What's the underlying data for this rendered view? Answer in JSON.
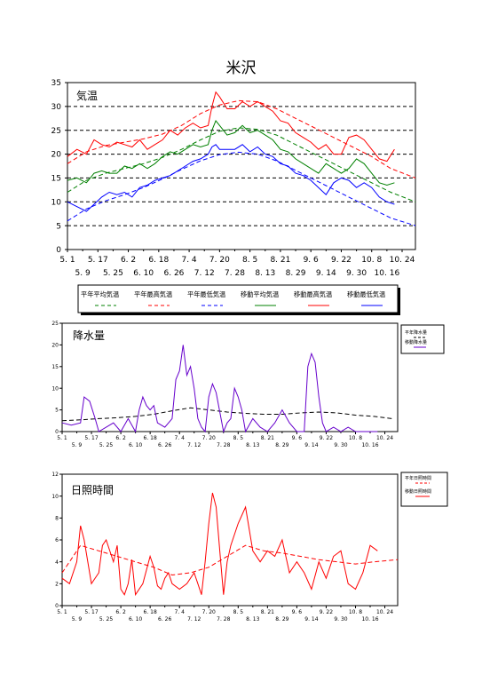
{
  "page_title": "米沢",
  "chart_data": [
    {
      "type": "line",
      "title": "気温",
      "y_ticks": [
        "0",
        "5",
        "10",
        "15",
        "20",
        "25",
        "30",
        "35"
      ],
      "ylim": [
        0,
        35
      ],
      "x_ticks_top": [
        "5. 1",
        "5. 17",
        "6. 2",
        "6. 18",
        "7. 4",
        "7. 20",
        "8. 5",
        "8. 21",
        "9. 6",
        "9. 22",
        "10. 8",
        "10. 24"
      ],
      "x_ticks_bottom": [
        "5. 9",
        "5. 25",
        "6. 10",
        "6. 26",
        "7. 12",
        "7. 28",
        "8. 13",
        "8. 29",
        "9. 14",
        "9. 30",
        "10. 16"
      ],
      "x_range_days": [
        0,
        183
      ],
      "grid": "horizontal dashed",
      "legend_items": [
        {
          "label": "平年平均気温",
          "color": "#008000",
          "style": "dashed"
        },
        {
          "label": "平年最高気温",
          "color": "#ff0000",
          "style": "dashed"
        },
        {
          "label": "平年最低気温",
          "color": "#0000ff",
          "style": "dashed"
        },
        {
          "label": "移動平均気温",
          "color": "#008000",
          "style": "solid"
        },
        {
          "label": "移動最高気温",
          "color": "#ff0000",
          "style": "solid"
        },
        {
          "label": "移動最低気温",
          "color": "#0000ff",
          "style": "solid"
        }
      ],
      "series": [
        {
          "name": "平年最高気温",
          "color": "#ff0000",
          "style": "dashed",
          "x": [
            0,
            10,
            20,
            30,
            40,
            50,
            60,
            70,
            80,
            90,
            100,
            110,
            120,
            130,
            140,
            150,
            160,
            170,
            183
          ],
          "y": [
            18,
            20.5,
            21.8,
            22.5,
            23.2,
            24.2,
            26,
            28.5,
            30.3,
            31.2,
            31,
            29.5,
            27.5,
            25.5,
            23.5,
            21.5,
            19.5,
            17,
            15
          ]
        },
        {
          "name": "平年平均気温",
          "color": "#008000",
          "style": "dashed",
          "x": [
            0,
            10,
            20,
            30,
            40,
            50,
            60,
            70,
            80,
            90,
            100,
            110,
            120,
            130,
            140,
            150,
            160,
            170,
            183
          ],
          "y": [
            12,
            14.5,
            16,
            17,
            18,
            19.3,
            21,
            23,
            24.8,
            25.5,
            25.2,
            24,
            22,
            20,
            18,
            16,
            14,
            12,
            10
          ]
        },
        {
          "name": "平年最低気温",
          "color": "#0000ff",
          "style": "dashed",
          "x": [
            0,
            10,
            20,
            30,
            40,
            50,
            60,
            70,
            80,
            90,
            100,
            110,
            120,
            130,
            140,
            150,
            160,
            170,
            183
          ],
          "y": [
            6,
            8.5,
            10.2,
            11.5,
            13,
            14.8,
            16.8,
            18.6,
            19.9,
            20.4,
            20,
            18.6,
            16.6,
            14.6,
            12.6,
            10.6,
            8.6,
            6.6,
            5
          ]
        },
        {
          "name": "移動最高気温",
          "color": "#ff0000",
          "style": "solid",
          "x": [
            0,
            5,
            10,
            14,
            18,
            22,
            26,
            30,
            34,
            38,
            42,
            46,
            50,
            54,
            58,
            62,
            66,
            70,
            74,
            76,
            78,
            80,
            84,
            88,
            92,
            96,
            100,
            104,
            108,
            112,
            116,
            120,
            124,
            128,
            132,
            136,
            140,
            144,
            148,
            152,
            156,
            160,
            164,
            168,
            172
          ],
          "y": [
            19.5,
            21,
            20,
            23,
            22,
            21.5,
            22.5,
            22,
            21.5,
            23,
            21,
            22,
            23,
            25,
            24,
            25.5,
            26.5,
            25.5,
            26,
            30,
            33,
            32,
            29.5,
            29.5,
            31,
            30,
            31,
            30,
            29,
            27,
            26.5,
            24.5,
            23.5,
            22.5,
            21,
            22,
            20,
            20,
            23.5,
            24,
            23,
            21,
            19,
            18.5,
            21
          ]
        },
        {
          "name": "移動平均気温",
          "color": "#008000",
          "style": "solid",
          "x": [
            0,
            5,
            10,
            14,
            18,
            22,
            26,
            30,
            34,
            38,
            42,
            46,
            50,
            54,
            58,
            62,
            66,
            70,
            74,
            76,
            78,
            80,
            84,
            88,
            92,
            96,
            100,
            104,
            108,
            112,
            116,
            120,
            124,
            128,
            132,
            136,
            140,
            144,
            148,
            152,
            156,
            160,
            164,
            168,
            172
          ],
          "y": [
            14.5,
            15,
            14,
            16,
            16.5,
            16,
            16,
            17.5,
            17,
            18,
            17,
            18,
            19.5,
            20.5,
            20,
            21,
            22,
            21.5,
            22,
            25,
            27,
            26,
            24,
            24.5,
            26,
            24.5,
            25,
            24,
            23,
            21,
            20.5,
            19,
            18,
            17,
            16,
            18,
            17,
            16,
            17,
            19,
            18,
            16,
            14,
            13.5,
            14
          ]
        },
        {
          "name": "移動最低気温",
          "color": "#0000ff",
          "style": "solid",
          "x": [
            0,
            5,
            10,
            14,
            18,
            22,
            26,
            30,
            34,
            38,
            42,
            46,
            50,
            54,
            58,
            62,
            66,
            70,
            74,
            76,
            78,
            80,
            84,
            88,
            92,
            96,
            100,
            104,
            108,
            112,
            116,
            120,
            124,
            128,
            132,
            136,
            140,
            144,
            148,
            152,
            156,
            160,
            164,
            168,
            172
          ],
          "y": [
            10,
            9,
            8,
            9.5,
            11,
            12,
            11.5,
            12,
            11,
            13,
            13.5,
            14.5,
            15,
            15.5,
            16.5,
            17.5,
            18.5,
            19,
            20,
            21.5,
            22,
            21,
            21,
            21,
            22,
            20.5,
            21.5,
            20,
            19.5,
            18,
            17.5,
            16,
            15.5,
            14.5,
            13,
            11.5,
            14,
            15,
            14.5,
            13,
            14,
            13,
            11,
            10,
            9.5
          ]
        }
      ]
    },
    {
      "type": "line",
      "title": "降水量",
      "y_ticks": [
        "0",
        "5",
        "10",
        "15",
        "20",
        "25"
      ],
      "ylim": [
        0,
        25
      ],
      "x_ticks_top": [
        "5. 1",
        "5. 17",
        "6. 2",
        "6. 18",
        "7. 4",
        "7. 20",
        "8. 5",
        "8. 21",
        "9. 6",
        "9. 22",
        "10. 8",
        "10. 24"
      ],
      "x_ticks_bottom": [
        "5. 9",
        "5. 25",
        "6. 10",
        "6. 26",
        "7. 12",
        "7. 28",
        "8. 13",
        "8. 29",
        "9. 14",
        "9. 30",
        "10. 16"
      ],
      "x_range_days": [
        0,
        183
      ],
      "legend_items": [
        {
          "label": "平年降水量",
          "color": "#000000",
          "style": "dashed"
        },
        {
          "label": "移動降水量",
          "color": "#6600cc",
          "style": "solid"
        }
      ],
      "series": [
        {
          "name": "平年降水量",
          "color": "#000000",
          "style": "dashed",
          "x": [
            0,
            10,
            20,
            30,
            40,
            50,
            60,
            70,
            80,
            90,
            100,
            110,
            120,
            130,
            140,
            150,
            160,
            170,
            180
          ],
          "y": [
            2.5,
            2.7,
            3,
            3.2,
            3.5,
            4,
            4.8,
            5.5,
            5,
            4.5,
            4.2,
            4,
            4,
            4.3,
            4.5,
            4.3,
            3.8,
            3.5,
            3
          ]
        },
        {
          "name": "移動降水量",
          "color": "#6600cc",
          "style": "solid",
          "x": [
            0,
            5,
            10,
            12,
            15,
            18,
            20,
            24,
            28,
            32,
            36,
            40,
            42,
            44,
            46,
            48,
            50,
            52,
            56,
            60,
            62,
            64,
            66,
            68,
            70,
            72,
            74,
            76,
            78,
            80,
            82,
            84,
            88,
            90,
            92,
            94,
            96,
            98,
            100,
            104,
            108,
            112,
            116,
            120,
            124,
            128,
            132,
            134,
            136,
            138,
            140,
            142,
            144,
            148,
            152,
            156,
            160,
            164,
            168,
            172
          ],
          "y": [
            2,
            1.5,
            2,
            8,
            7,
            3,
            0,
            1,
            2,
            0,
            3,
            0,
            5,
            8,
            6,
            5,
            6,
            2,
            1,
            3,
            12,
            14,
            20,
            13,
            15,
            10,
            3,
            1,
            0,
            8,
            11,
            9,
            0,
            2,
            3,
            10,
            8,
            5,
            0,
            3,
            1,
            0,
            2,
            5,
            2,
            0,
            0,
            15,
            18,
            16,
            8,
            2,
            0,
            1,
            0,
            1,
            0,
            0,
            0,
            0
          ]
        }
      ]
    },
    {
      "type": "line",
      "title": "日照時間",
      "y_ticks": [
        "0",
        "2",
        "4",
        "6",
        "8",
        "10",
        "12"
      ],
      "ylim": [
        0,
        12
      ],
      "x_ticks_top": [
        "5. 1",
        "5. 17",
        "6. 2",
        "6. 18",
        "7. 4",
        "7. 20",
        "8. 5",
        "8. 21",
        "9. 6",
        "9. 22",
        "10. 8",
        "10. 24"
      ],
      "x_ticks_bottom": [
        "5. 9",
        "5. 25",
        "6. 10",
        "6. 26",
        "7. 12",
        "7. 28",
        "8. 13",
        "8. 29",
        "9. 14",
        "9. 30",
        "10. 16"
      ],
      "x_range_days": [
        0,
        183
      ],
      "legend_items": [
        {
          "label": "平年日照時間",
          "color": "#ff0000",
          "style": "dashed"
        },
        {
          "label": "移動日照時間",
          "color": "#ff0000",
          "style": "solid"
        }
      ],
      "series": [
        {
          "name": "平年日照時間",
          "color": "#ff0000",
          "style": "dashed",
          "x": [
            0,
            10,
            20,
            30,
            40,
            50,
            60,
            70,
            80,
            90,
            100,
            110,
            120,
            130,
            140,
            150,
            160,
            170,
            183
          ],
          "y": [
            3,
            5.5,
            5,
            4.5,
            4,
            3.5,
            2.8,
            3,
            3.5,
            4.5,
            5.5,
            5,
            4.8,
            4.5,
            4.2,
            4,
            3.8,
            4,
            4.2
          ]
        },
        {
          "name": "移動日照時間",
          "color": "#ff0000",
          "style": "solid",
          "x": [
            0,
            4,
            8,
            10,
            12,
            16,
            20,
            22,
            24,
            28,
            30,
            32,
            34,
            36,
            38,
            40,
            44,
            48,
            50,
            52,
            54,
            56,
            58,
            60,
            64,
            68,
            72,
            74,
            76,
            78,
            80,
            82,
            84,
            86,
            88,
            90,
            92,
            96,
            100,
            104,
            108,
            112,
            116,
            120,
            124,
            128,
            132,
            136,
            140,
            144,
            148,
            152,
            156,
            160,
            164,
            168,
            172
          ],
          "y": [
            2.5,
            2,
            4,
            7.3,
            6,
            2,
            3,
            5.5,
            6,
            4,
            5.5,
            1.5,
            1,
            2,
            4.2,
            1,
            2,
            4.5,
            3.5,
            1.8,
            1.5,
            2.5,
            3,
            2,
            1.5,
            2,
            3,
            2,
            1,
            4,
            7.5,
            10.3,
            9,
            5,
            1,
            4,
            5.5,
            7.5,
            9,
            5,
            4,
            5,
            4.5,
            6,
            3,
            4,
            3,
            1.5,
            4,
            2.5,
            4.5,
            5,
            2,
            1.5,
            3,
            5.5,
            5
          ]
        }
      ]
    }
  ]
}
